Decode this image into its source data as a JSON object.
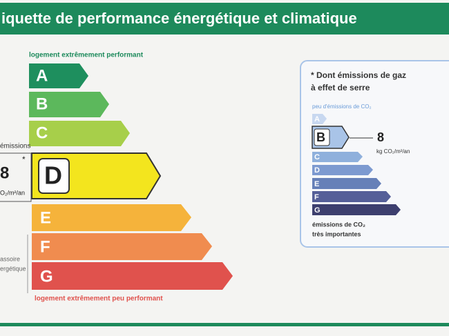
{
  "header": {
    "title": "iquette de performance énergétique et climatique"
  },
  "energy": {
    "top_label": "logement extrêmement performant",
    "bottom_label": "logement extrêmement peu performant",
    "classes": [
      "A",
      "B",
      "C",
      "D",
      "E",
      "F",
      "G"
    ]
  },
  "left_margin": {
    "emissions": "émissions",
    "value": "8",
    "asterisk": "*",
    "unit": "O₂/m²/an",
    "note_line1": "assoire",
    "note_line2": "ergétique"
  },
  "ges": {
    "title_line1": "* Dont émissions de gaz",
    "title_line2": "à effet de serre",
    "top_label": "peu d'émissions de CO₂",
    "classes": [
      "A",
      "B",
      "C",
      "D",
      "E",
      "F",
      "G"
    ],
    "value": "8",
    "unit": "kg CO₂/m²/an",
    "bottom_line1": "émissions de CO₂",
    "bottom_line2": "très importantes"
  }
}
